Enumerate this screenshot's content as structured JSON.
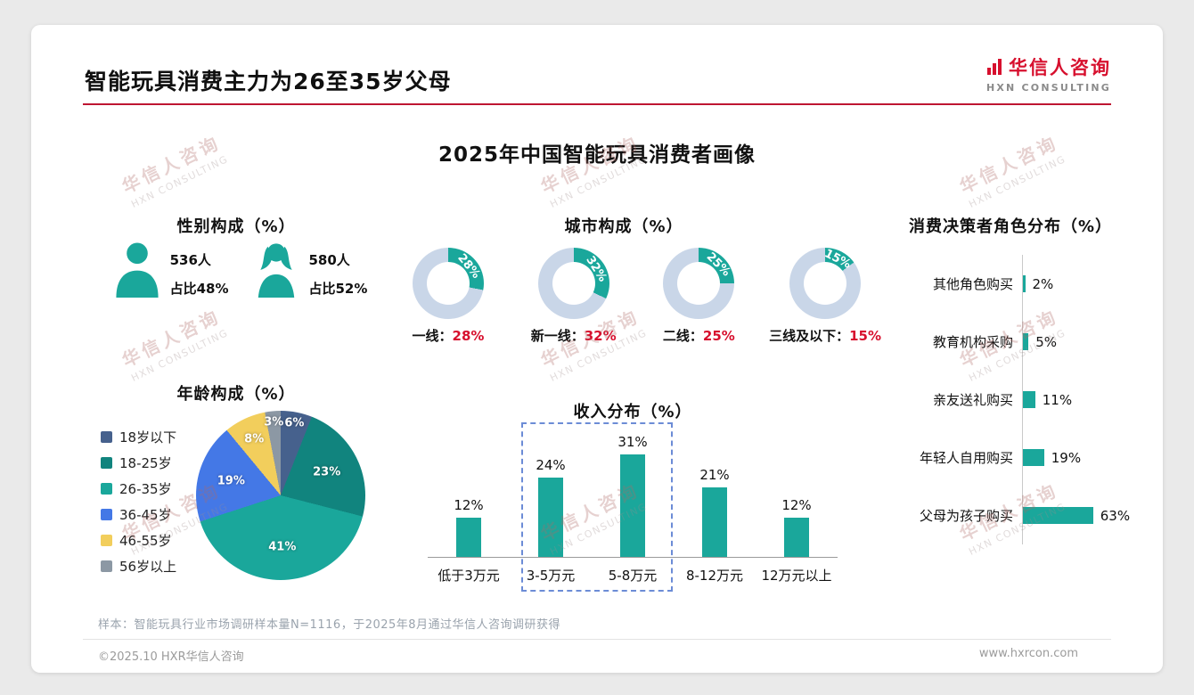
{
  "page": {
    "title": "智能玩具消费主力为26至35岁父母",
    "main_title": "2025年中国智能玩具消费者画像",
    "logo": {
      "cn": "华信人咨询",
      "en": "HXN CONSULTING"
    },
    "watermark": {
      "cn": "华信人咨询",
      "en": "HXN CONSULTING"
    },
    "footnote": "样本：智能玩具行业市场调研样本量N=1116，于2025年8月通过华信人咨询调研获得",
    "copyright": "©2025.10 HXR华信人咨询",
    "website": "www.hxrcon.com"
  },
  "colors": {
    "teal": "#1AA79B",
    "ring": "#C9D6E8",
    "red": "#D7102E",
    "divider_red": "#BE1532"
  },
  "chart_data": [
    {
      "id": "gender",
      "type": "pictogram",
      "title": "性别构成（%）",
      "items": [
        {
          "icon": "male-icon",
          "count": "536人",
          "share": "占比48%"
        },
        {
          "icon": "female-icon",
          "count": "580人",
          "share": "占比52%"
        }
      ]
    },
    {
      "id": "city",
      "type": "pie",
      "subtype": "donut-set",
      "title": "城市构成（%）",
      "unit": "%",
      "items": [
        {
          "label": "一线",
          "value": 28
        },
        {
          "label": "新一线",
          "value": 32
        },
        {
          "label": "二线",
          "value": 25
        },
        {
          "label": "三线及以下",
          "value": 15
        }
      ]
    },
    {
      "id": "age",
      "type": "pie",
      "title": "年龄构成（%）",
      "unit": "%",
      "items": [
        {
          "label": "18岁以下",
          "value": 6,
          "color": "#46618D"
        },
        {
          "label": "18-25岁",
          "value": 23,
          "color": "#11847E"
        },
        {
          "label": "26-35岁",
          "value": 41,
          "color": "#1AA79B"
        },
        {
          "label": "36-45岁",
          "value": 19,
          "color": "#4478E6"
        },
        {
          "label": "46-55岁",
          "value": 8,
          "color": "#F2CE5C"
        },
        {
          "label": "56岁以上",
          "value": 3,
          "color": "#8C98A4"
        }
      ]
    },
    {
      "id": "income",
      "type": "bar",
      "title": "收入分布（%）",
      "unit": "%",
      "categories": [
        "低于3万元",
        "3-5万元",
        "5-8万元",
        "8-12万元",
        "12万元以上"
      ],
      "values": [
        12,
        24,
        31,
        21,
        12
      ],
      "highlight_categories": [
        "3-5万元",
        "5-8万元"
      ]
    },
    {
      "id": "decision",
      "type": "bar",
      "subtype": "horizontal",
      "title": "消费决策者角色分布（%）",
      "unit": "%",
      "categories": [
        "其他角色购买",
        "教育机构采购",
        "亲友送礼购买",
        "年轻人自用购买",
        "父母为孩子购买"
      ],
      "values": [
        2,
        5,
        11,
        19,
        63
      ]
    }
  ]
}
